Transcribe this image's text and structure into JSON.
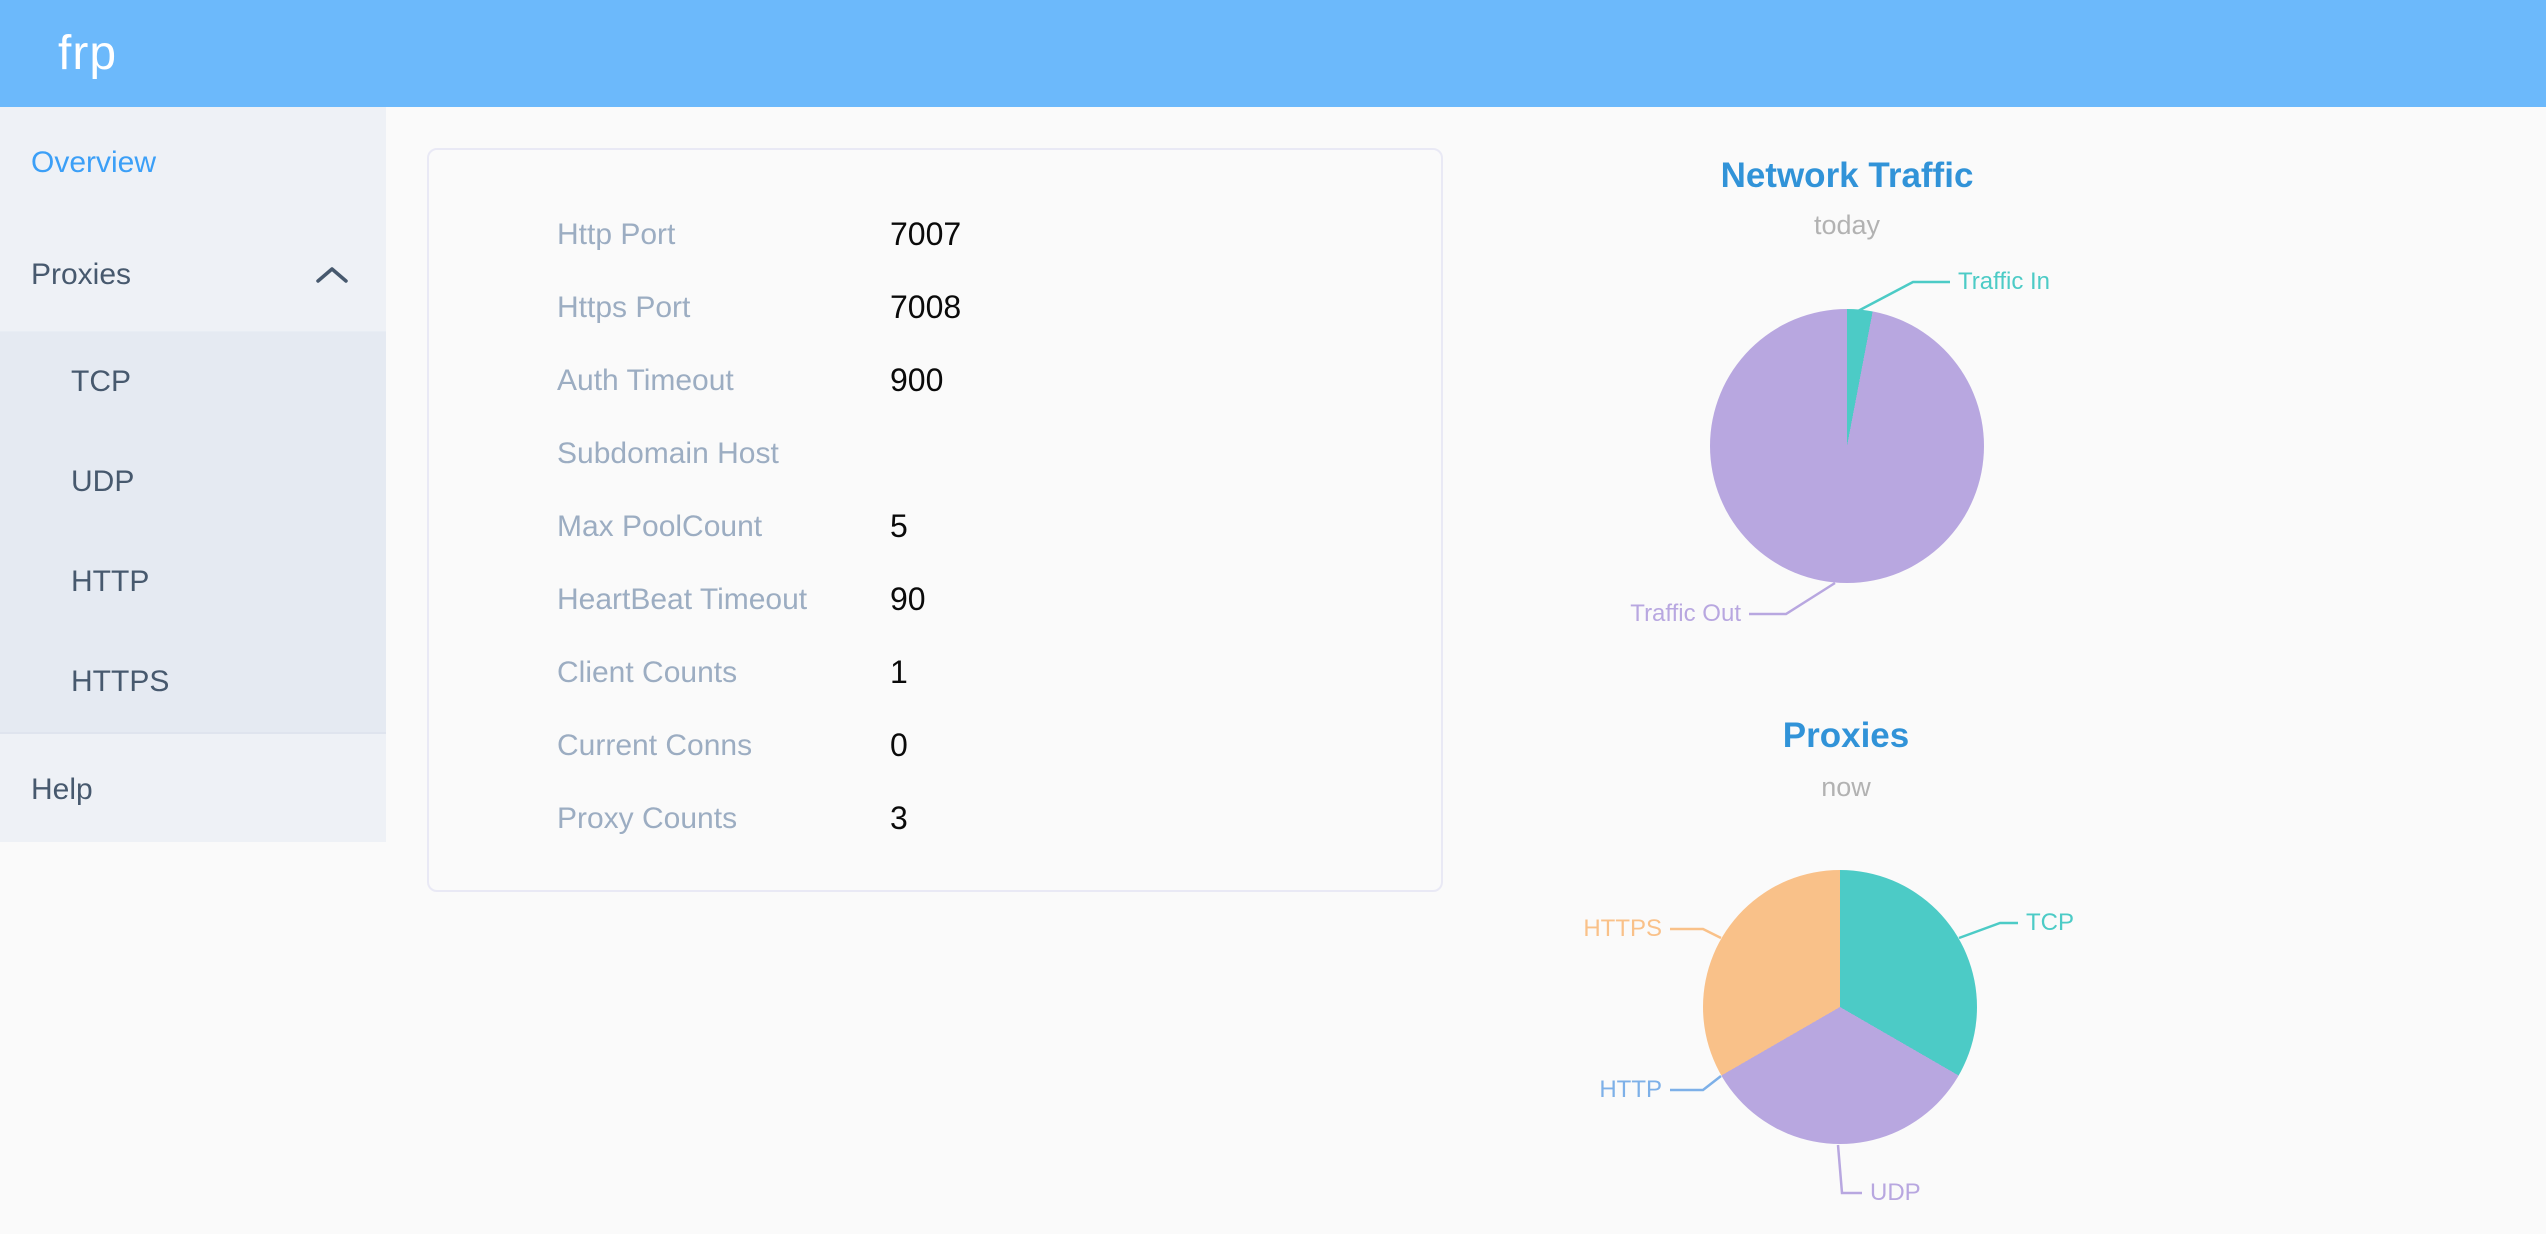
{
  "header": {
    "logo": "frp"
  },
  "sidebar": {
    "items": [
      {
        "label": "Overview",
        "active": true
      },
      {
        "label": "Proxies",
        "expanded": true
      },
      {
        "label": "Help",
        "active": false
      }
    ],
    "proxies_submenu": [
      "TCP",
      "UDP",
      "HTTP",
      "HTTPS"
    ]
  },
  "overview_card": {
    "rows": [
      {
        "label": "Http Port",
        "value": "7007"
      },
      {
        "label": "Https Port",
        "value": "7008"
      },
      {
        "label": "Auth Timeout",
        "value": "900"
      },
      {
        "label": "Subdomain Host",
        "value": ""
      },
      {
        "label": "Max PoolCount",
        "value": "5"
      },
      {
        "label": "HeartBeat Timeout",
        "value": "90"
      },
      {
        "label": "Client Counts",
        "value": "1"
      },
      {
        "label": "Current Conns",
        "value": "0"
      },
      {
        "label": "Proxy Counts",
        "value": "3"
      }
    ]
  },
  "chart_data": [
    {
      "type": "pie",
      "title": "Network Traffic",
      "subtitle": "today",
      "labels": [
        "Traffic In",
        "Traffic Out"
      ],
      "values": [
        3,
        97
      ],
      "value_unit": "percent-of-circle (estimated from arc angles)",
      "colors": [
        "#4ccbc6",
        "#b8a7e0"
      ],
      "legend_position": "callout-labels"
    },
    {
      "type": "pie",
      "title": "Proxies",
      "subtitle": "now",
      "labels": [
        "TCP",
        "UDP",
        "HTTP",
        "HTTPS"
      ],
      "values": [
        1,
        1,
        0,
        1
      ],
      "value_unit": "proxy count",
      "colors": [
        "#4ccbc6",
        "#b8a7e0",
        "#7db0e8",
        "#f9c189"
      ],
      "legend_position": "callout-labels"
    }
  ],
  "colors": {
    "header_bg": "#6cb9fb",
    "sidebar_bg": "#eef1f6",
    "submenu_bg": "#e5eaf2",
    "sidebar_text": "#47596e",
    "active_item_blue": "#3b9ff7",
    "page_bg": "#fafafa",
    "card_border": "#e9e9f5",
    "config_label_gray": "#9cadc2",
    "chart_title_blue": "#3193d8",
    "teal": "#4ccbc6",
    "purple": "#b8a7e0",
    "orange": "#f9c189",
    "http_label_blue": "#7db0e8"
  }
}
